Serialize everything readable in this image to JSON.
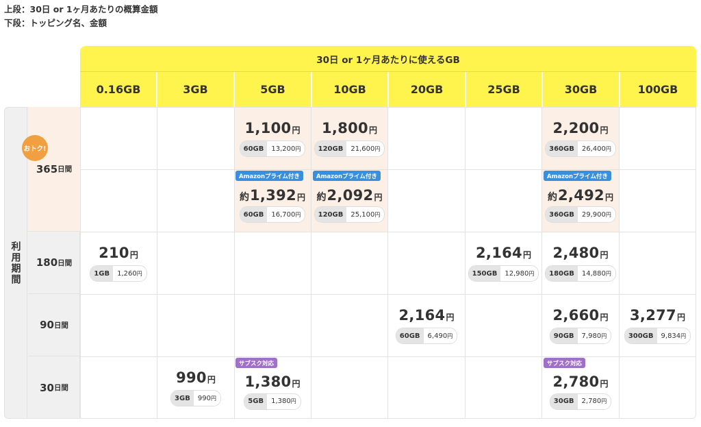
{
  "notes": {
    "line1": "上段：30日 or 1ヶ月あたりの概算金額",
    "line2": "下段：トッピング名、金額"
  },
  "header": {
    "title": "30日 or 1ヶ月あたりに使えるGB",
    "columns": [
      "0.16GB",
      "3GB",
      "5GB",
      "10GB",
      "20GB",
      "25GB",
      "30GB",
      "100GB"
    ]
  },
  "periods": {
    "group_label": "利用期間",
    "rows": [
      {
        "num": "365",
        "unit": "日間"
      },
      {
        "num": "180",
        "unit": "日間"
      },
      {
        "num": "90",
        "unit": "日間"
      },
      {
        "num": "30",
        "unit": "日間"
      }
    ],
    "deal_badge": "おトク!"
  },
  "cells": {
    "r365a_5": {
      "price": "1,100",
      "yen": "円",
      "gb": "60GB",
      "amount": "13,200",
      "yen2": "円"
    },
    "r365a_10": {
      "price": "1,800",
      "yen": "円",
      "gb": "120GB",
      "amount": "21,600",
      "yen2": "円"
    },
    "r365a_30": {
      "price": "2,200",
      "yen": "円",
      "gb": "360GB",
      "amount": "26,400",
      "yen2": "円"
    },
    "r365b_5": {
      "tag": "Amazonプライム付き",
      "approx": "約",
      "price": "1,392",
      "yen": "円",
      "gb": "60GB",
      "amount": "16,700",
      "yen2": "円"
    },
    "r365b_10": {
      "tag": "Amazonプライム付き",
      "approx": "約",
      "price": "2,092",
      "yen": "円",
      "gb": "120GB",
      "amount": "25,100",
      "yen2": "円"
    },
    "r365b_30": {
      "tag": "Amazonプライム付き",
      "approx": "約",
      "price": "2,492",
      "yen": "円",
      "gb": "360GB",
      "amount": "29,900",
      "yen2": "円"
    },
    "r180_016": {
      "price": "210",
      "yen": "円",
      "gb": "1GB",
      "amount": "1,260",
      "yen2": "円"
    },
    "r180_25": {
      "price": "2,164",
      "yen": "円",
      "gb": "150GB",
      "amount": "12,980",
      "yen2": "円"
    },
    "r180_30": {
      "price": "2,480",
      "yen": "円",
      "gb": "180GB",
      "amount": "14,880",
      "yen2": "円"
    },
    "r90_20": {
      "price": "2,164",
      "yen": "円",
      "gb": "60GB",
      "amount": "6,490",
      "yen2": "円"
    },
    "r90_30": {
      "price": "2,660",
      "yen": "円",
      "gb": "90GB",
      "amount": "7,980",
      "yen2": "円"
    },
    "r90_100": {
      "price": "3,277",
      "yen": "円",
      "gb": "300GB",
      "amount": "9,834",
      "yen2": "円"
    },
    "r30_3": {
      "price": "990",
      "yen": "円",
      "gb": "3GB",
      "amount": "990",
      "yen2": "円"
    },
    "r30_5": {
      "tag": "サブスク対応",
      "price": "1,380",
      "yen": "円",
      "gb": "5GB",
      "amount": "1,380",
      "yen2": "円"
    },
    "r30_30": {
      "tag": "サブスク対応",
      "price": "2,780",
      "yen": "円",
      "gb": "30GB",
      "amount": "2,780",
      "yen2": "円"
    }
  },
  "colors": {
    "header_yellow": "#fff44e",
    "highlight": "#fcf0e6",
    "amazon_tag": "#3a8fdc",
    "subscription_tag": "#a070c8",
    "deal_badge": "#f0a040"
  }
}
